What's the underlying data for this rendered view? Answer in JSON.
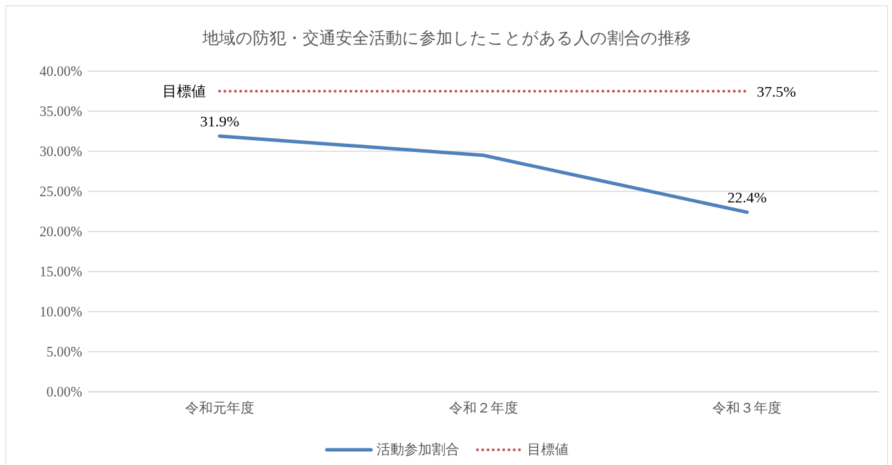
{
  "chart_data": {
    "type": "line",
    "title": "地域の防犯・交通安全活動に参加したことがある人の割合の推移",
    "categories": [
      "令和元年度",
      "令和２年度",
      "令和３年度"
    ],
    "series": [
      {
        "name": "活動参加割合",
        "color": "#4f81bd",
        "values": [
          31.9,
          29.5,
          22.4
        ],
        "value_labels": [
          "31.9%",
          null,
          "22.4%"
        ],
        "line_style": "solid"
      },
      {
        "name": "目標値",
        "color": "#c0504d",
        "values": [
          37.5,
          37.5,
          37.5
        ],
        "value_labels": [
          null,
          null,
          "37.5%"
        ],
        "line_style": "dotted"
      }
    ],
    "annotations": [
      {
        "text": "目標値",
        "x": "令和元年度",
        "y": 37.5
      }
    ],
    "ylim": [
      0,
      40
    ],
    "yticks": [
      {
        "value": 0,
        "label": "0.00%"
      },
      {
        "value": 5,
        "label": "5.00%"
      },
      {
        "value": 10,
        "label": "10.00%"
      },
      {
        "value": 15,
        "label": "15.00%"
      },
      {
        "value": 20,
        "label": "20.00%"
      },
      {
        "value": 25,
        "label": "25.00%"
      },
      {
        "value": 30,
        "label": "30.00%"
      },
      {
        "value": 35,
        "label": "35.00%"
      },
      {
        "value": 40,
        "label": "40.00%"
      }
    ],
    "grid": "y",
    "legend": "bottom",
    "marker": "none"
  }
}
